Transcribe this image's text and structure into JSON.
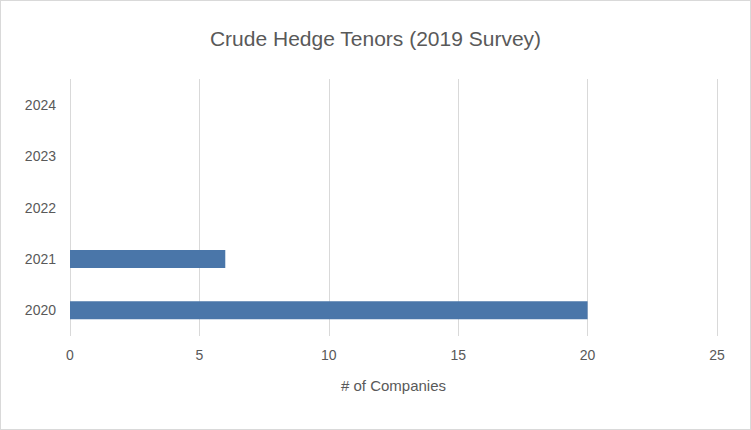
{
  "chart_data": {
    "type": "bar",
    "orientation": "horizontal",
    "title": "Crude Hedge Tenors (2019 Survey)",
    "x_label": "# of Companies",
    "categories": [
      "2020",
      "2021",
      "2022",
      "2023",
      "2024"
    ],
    "values": [
      20,
      6,
      0,
      0,
      0
    ],
    "color": "#4a76a9",
    "xlim": [
      0,
      25
    ],
    "xticks": [
      0,
      5,
      10,
      15,
      20,
      25
    ],
    "grid": true
  }
}
